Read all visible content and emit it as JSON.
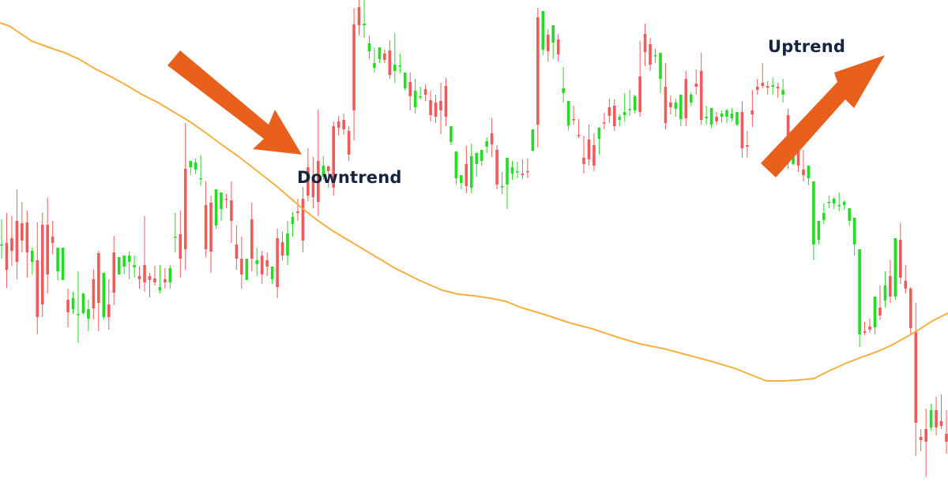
{
  "annotations": {
    "downtrend": "Downtrend",
    "uptrend": "Uptrend"
  },
  "colors": {
    "bull": "#22dd22",
    "bear": "#f05a5a",
    "moving_average": "#f5b041",
    "arrow": "#e8601c",
    "label": "#16243f",
    "background": "#ffffff"
  },
  "chart_data": {
    "type": "candlestick",
    "title": "",
    "xlabel": "",
    "ylabel": "",
    "axes_visible": false,
    "grid": false,
    "ylim": [
      0,
      620
    ],
    "value_note": "relative price level; higher = higher price",
    "annotations": [
      {
        "text": "Downtrend",
        "arrow": "down-right"
      },
      {
        "text": "Uptrend",
        "arrow": "up-right"
      }
    ],
    "candles": [
      [
        310,
        342,
        310,
        292
      ],
      [
        312,
        350,
        278,
        255
      ],
      [
        318,
        346,
        302,
        283
      ],
      [
        340,
        380,
        288,
        266
      ],
      [
        337,
        364,
        315,
        300
      ],
      [
        338,
        353,
        300,
        268
      ],
      [
        288,
        306,
        302,
        272
      ],
      [
        290,
        338,
        218,
        196
      ],
      [
        335,
        350,
        234,
        218
      ],
      [
        335,
        369,
        272,
        248
      ],
      [
        320,
        340,
        312,
        298
      ],
      [
        276,
        304,
        306,
        265
      ],
      [
        265,
        283,
        306,
        282
      ],
      [
        240,
        254,
        224,
        205
      ],
      [
        228,
        250,
        242,
        222
      ],
      [
        222,
        276,
        222,
        185
      ],
      [
        223,
        232,
        248,
        221
      ],
      [
        216,
        240,
        228,
        200
      ],
      [
        266,
        278,
        229,
        215
      ],
      [
        299,
        302,
        236,
        200
      ],
      [
        218,
        226,
        274,
        215
      ],
      [
        234,
        266,
        218,
        202
      ],
      [
        300,
        321,
        249,
        233
      ],
      [
        272,
        286,
        294,
        272
      ],
      [
        282,
        292,
        296,
        272
      ],
      [
        288,
        301,
        296,
        266
      ],
      [
        281,
        296,
        284,
        268
      ],
      [
        270,
        282,
        266,
        254
      ],
      [
        284,
        346,
        262,
        250
      ],
      [
        270,
        274,
        265,
        243
      ],
      [
        267,
        283,
        262,
        258
      ],
      [
        252,
        284,
        256,
        248
      ],
      [
        266,
        280,
        262,
        254
      ],
      [
        262,
        284,
        280,
        254
      ],
      [
        320,
        350,
        320,
        300
      ],
      [
        323,
        353,
        292,
        268
      ],
      [
        406,
        464,
        304,
        278
      ],
      [
        408,
        415,
        416,
        398
      ],
      [
        405,
        419,
        414,
        399
      ],
      [
        394,
        423,
        394,
        385
      ],
      [
        360,
        390,
        304,
        294
      ],
      [
        363,
        372,
        301,
        274
      ],
      [
        334,
        350,
        380,
        330
      ],
      [
        355,
        368,
        376,
        340
      ],
      [
        368,
        374,
        367,
        356
      ],
      [
        366,
        390,
        340,
        312
      ],
      [
        310,
        334,
        292,
        278
      ],
      [
        292,
        320,
        272,
        254
      ],
      [
        265,
        276,
        292,
        268
      ],
      [
        342,
        363,
        292,
        276
      ],
      [
        285,
        306,
        290,
        270
      ],
      [
        296,
        302,
        272,
        260
      ],
      [
        290,
        300,
        282,
        270
      ],
      [
        266,
        274,
        282,
        260
      ],
      [
        318,
        330,
        256,
        242
      ],
      [
        313,
        326,
        296,
        290
      ],
      [
        296,
        340,
        324,
        284
      ],
      [
        336,
        351,
        345,
        320
      ],
      [
        352,
        368,
        350,
        340
      ],
      [
        368,
        383,
        315,
        300
      ],
      [
        408,
        432,
        372,
        365
      ],
      [
        396,
        421,
        370,
        356
      ],
      [
        416,
        481,
        364,
        346
      ],
      [
        396,
        422,
        410,
        392
      ],
      [
        409,
        410,
        403,
        382
      ],
      [
        460,
        466,
        382,
        372
      ],
      [
        466,
        473,
        458,
        448
      ],
      [
        468,
        476,
        456,
        449
      ],
      [
        454,
        460,
        424,
        416
      ],
      [
        589,
        610,
        480,
        442
      ],
      [
        611,
        620,
        588,
        575
      ],
      [
        588,
        620,
        590,
        572
      ],
      [
        555,
        575,
        565,
        545
      ],
      [
        534,
        560,
        540,
        528
      ],
      [
        545,
        549,
        560,
        540
      ],
      [
        552,
        557,
        544,
        540
      ],
      [
        556,
        569,
        525,
        520
      ],
      [
        530,
        578,
        538,
        515
      ],
      [
        536,
        552,
        537,
        527
      ],
      [
        508,
        523,
        528,
        505
      ],
      [
        516,
        528,
        498,
        480
      ],
      [
        484,
        520,
        505,
        476
      ],
      [
        498,
        510,
        498,
        494
      ],
      [
        507,
        513,
        500,
        492
      ],
      [
        493,
        505,
        474,
        466
      ],
      [
        490,
        500,
        472,
        464
      ],
      [
        492,
        515,
        480,
        450
      ],
      [
        511,
        521,
        472,
        460
      ],
      [
        440,
        448,
        460,
        436
      ],
      [
        394,
        410,
        428,
        386
      ],
      [
        388,
        395,
        398,
        380
      ],
      [
        412,
        435,
        384,
        375
      ],
      [
        382,
        438,
        422,
        375
      ],
      [
        412,
        422,
        426,
        396
      ],
      [
        416,
        428,
        430,
        410
      ],
      [
        434,
        446,
        441,
        426
      ],
      [
        451,
        470,
        437,
        421
      ],
      [
        430,
        436,
        386,
        380
      ],
      [
        384,
        402,
        384,
        374
      ],
      [
        386,
        400,
        420,
        355
      ],
      [
        400,
        416,
        408,
        392
      ],
      [
        402,
        415,
        403,
        394
      ],
      [
        400,
        418,
        398,
        393
      ],
      [
        403,
        419,
        402,
        394
      ],
      [
        429,
        436,
        456,
        428
      ],
      [
        598,
        610,
        462,
        433
      ],
      [
        557,
        565,
        606,
        550
      ],
      [
        576,
        583,
        555,
        542
      ],
      [
        566,
        572,
        588,
        545
      ],
      [
        570,
        577,
        551,
        542
      ],
      [
        502,
        535,
        508,
        490
      ],
      [
        461,
        470,
        492,
        455
      ],
      [
        469,
        486,
        468,
        462
      ],
      [
        449,
        469,
        448,
        445
      ],
      [
        420,
        448,
        412,
        400
      ],
      [
        443,
        462,
        418,
        410
      ],
      [
        436,
        451,
        410,
        403
      ],
      [
        444,
        459,
        458,
        424
      ],
      [
        465,
        477,
        464,
        456
      ],
      [
        484,
        495,
        473,
        464
      ],
      [
        486,
        494,
        460,
        454
      ],
      [
        468,
        475,
        472,
        460
      ],
      [
        474,
        502,
        478,
        466
      ],
      [
        481,
        506,
        482,
        473
      ],
      [
        480,
        500,
        498,
        476
      ],
      [
        523,
        568,
        478,
        472
      ],
      [
        577,
        590,
        554,
        536
      ],
      [
        564,
        572,
        538,
        530
      ],
      [
        550,
        558,
        550,
        540
      ],
      [
        520,
        536,
        553,
        502
      ],
      [
        510,
        540,
        464,
        456
      ],
      [
        490,
        499,
        484,
        475
      ],
      [
        482,
        495,
        490,
        472
      ],
      [
        469,
        486,
        500,
        460
      ],
      [
        520,
        530,
        470,
        460
      ],
      [
        490,
        503,
        500,
        486
      ],
      [
        514,
        532,
        510,
        500
      ],
      [
        530,
        553,
        468,
        462
      ],
      [
        470,
        486,
        472,
        462
      ],
      [
        462,
        480,
        483,
        458
      ],
      [
        472,
        478,
        466,
        462
      ],
      [
        472,
        480,
        476,
        465
      ],
      [
        472,
        482,
        480,
        464
      ],
      [
        470,
        483,
        476,
        466
      ],
      [
        462,
        472,
        478,
        460
      ],
      [
        478,
        492,
        432,
        420
      ],
      [
        436,
        454,
        434,
        420
      ],
      [
        480,
        506,
        475,
        459
      ],
      [
        510,
        520,
        506,
        500
      ],
      [
        515,
        540,
        511,
        508
      ],
      [
        511,
        517,
        509,
        500
      ],
      [
        510,
        521,
        512,
        500
      ],
      [
        510,
        515,
        508,
        496
      ],
      [
        500,
        520,
        506,
        490
      ],
      [
        474,
        482,
        414,
        406
      ],
      [
        412,
        420,
        426,
        410
      ],
      [
        430,
        440,
        410,
        402
      ],
      [
        405,
        430,
        398,
        390
      ],
      [
        394,
        397,
        410,
        385
      ],
      [
        310,
        316,
        390,
        290
      ],
      [
        316,
        340,
        340,
        310
      ],
      [
        341,
        362,
        350,
        336
      ],
      [
        364,
        372,
        364,
        356
      ],
      [
        362,
        370,
        368,
        355
      ],
      [
        360,
        376,
        360,
        352
      ],
      [
        360,
        366,
        364,
        354
      ],
      [
        340,
        346,
        356,
        334
      ],
      [
        310,
        316,
        344,
        296
      ],
      [
        196,
        200,
        304,
        180
      ],
      [
        200,
        212,
        198,
        195
      ],
      [
        206,
        216,
        202,
        198
      ],
      [
        205,
        238,
        244,
        196
      ],
      [
        230,
        258,
        220,
        214
      ],
      [
        239,
        276,
        258,
        230
      ],
      [
        270,
        290,
        244,
        236
      ],
      [
        244,
        296,
        318,
        240
      ],
      [
        316,
        337,
        268,
        260
      ],
      [
        264,
        284,
        254,
        248
      ],
      [
        254,
        256,
        204,
        195
      ],
      [
        200,
        236,
        84,
        42
      ],
      [
        66,
        76,
        62,
        48
      ],
      [
        76,
        102,
        60,
        15
      ],
      [
        78,
        108,
        100,
        74
      ],
      [
        100,
        117,
        78,
        68
      ],
      [
        86,
        120,
        80,
        76
      ],
      [
        70,
        100,
        60,
        45
      ]
    ],
    "moving_average_1": [
      [
        0,
        29
      ],
      [
        12,
        33
      ],
      [
        40,
        52
      ],
      [
        70,
        63
      ],
      [
        80,
        66
      ],
      [
        100,
        75
      ],
      [
        120,
        87
      ],
      [
        140,
        97
      ],
      [
        160,
        108
      ],
      [
        180,
        120
      ],
      [
        200,
        130
      ],
      [
        220,
        142
      ],
      [
        240,
        154
      ],
      [
        260,
        168
      ],
      [
        280,
        183
      ],
      [
        300,
        197
      ],
      [
        322,
        214
      ],
      [
        350,
        236
      ],
      [
        380,
        262
      ],
      [
        400,
        278
      ],
      [
        420,
        292
      ],
      [
        450,
        310
      ],
      [
        480,
        328
      ],
      [
        500,
        340
      ],
      [
        530,
        355
      ],
      [
        560,
        368
      ],
      [
        580,
        373
      ],
      [
        600,
        375
      ],
      [
        620,
        378
      ],
      [
        640,
        382
      ],
      [
        660,
        390
      ],
      [
        690,
        399
      ],
      [
        720,
        409
      ],
      [
        750,
        417
      ],
      [
        780,
        427
      ],
      [
        810,
        436
      ],
      [
        840,
        442
      ],
      [
        870,
        450
      ],
      [
        900,
        458
      ],
      [
        930,
        467
      ],
      [
        950,
        475
      ],
      [
        970,
        483
      ]
    ],
    "moving_average_2": [
      [
        970,
        483
      ],
      [
        990,
        483
      ],
      [
        1010,
        482
      ],
      [
        1030,
        480
      ],
      [
        1050,
        470
      ],
      [
        1070,
        461
      ],
      [
        1090,
        453
      ],
      [
        1110,
        446
      ],
      [
        1130,
        437
      ],
      [
        1160,
        420
      ],
      [
        1180,
        407
      ],
      [
        1200,
        397
      ]
    ]
  }
}
